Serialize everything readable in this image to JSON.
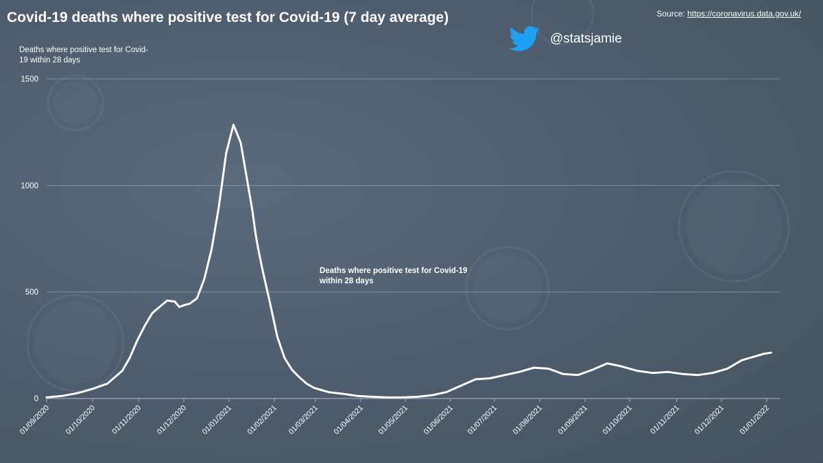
{
  "title": "Covid-19 deaths where positive test for Covid-19 (7 day average)",
  "source_prefix": "Source: ",
  "source_link": "https://coronavirus.data.gov.uk/",
  "handle": "@statsjamie",
  "icon": "twitter-bird-icon",
  "colors": {
    "background": "#4e5c6e",
    "line": "#ffffff",
    "gridline": "#a8b0b8",
    "twitter": "#1da1f2"
  },
  "chart_data": {
    "type": "line",
    "title": "Covid-19 deaths where positive test for Covid-19 (7 day average)",
    "ylabel": "Deaths where positive test for Covid-19 within 28 days",
    "xlabel": "",
    "series_label": "Deaths where positive test for Covid-19 within 28 days",
    "ylim": [
      0,
      1500
    ],
    "y_ticks": [
      0,
      500,
      1000,
      1500
    ],
    "x_ticks": [
      "01/09/2020",
      "01/10/2020",
      "01/11/2020",
      "01/12/2020",
      "01/01/2021",
      "01/02/2021",
      "01/03/2021",
      "01/04/2021",
      "01/05/2021",
      "01/06/2021",
      "01/07/2021",
      "01/08/2021",
      "01/09/2021",
      "01/10/2021",
      "01/11/2021",
      "01/12/2021",
      "01/01/2022"
    ],
    "grid": true,
    "series": [
      {
        "name": "Deaths where positive test for Covid-19 within 28 days",
        "x_days": [
          0,
          10,
          20,
          30,
          40,
          50,
          55,
          60,
          65,
          70,
          75,
          80,
          85,
          88,
          92,
          95,
          100,
          105,
          110,
          115,
          120,
          125,
          130,
          135,
          138,
          140,
          142,
          145,
          150,
          155,
          160,
          165,
          170,
          175,
          180,
          190,
          200,
          210,
          220,
          230,
          240,
          250,
          260,
          270,
          280,
          290,
          300,
          310,
          320,
          330,
          340,
          350,
          360,
          370,
          380,
          390,
          400,
          410,
          420,
          430,
          440,
          450,
          460,
          470,
          480,
          485,
          490
        ],
        "values": [
          5,
          12,
          25,
          45,
          70,
          130,
          190,
          270,
          340,
          400,
          430,
          460,
          455,
          430,
          440,
          445,
          470,
          560,
          700,
          900,
          1150,
          1285,
          1200,
          1000,
          880,
          780,
          700,
          600,
          450,
          290,
          190,
          135,
          100,
          70,
          50,
          30,
          22,
          12,
          8,
          5,
          5,
          8,
          15,
          30,
          60,
          90,
          95,
          110,
          125,
          145,
          140,
          115,
          110,
          135,
          165,
          150,
          130,
          120,
          125,
          115,
          110,
          120,
          140,
          180,
          200,
          210,
          215
        ]
      }
    ],
    "x_start": "01/09/2020"
  }
}
